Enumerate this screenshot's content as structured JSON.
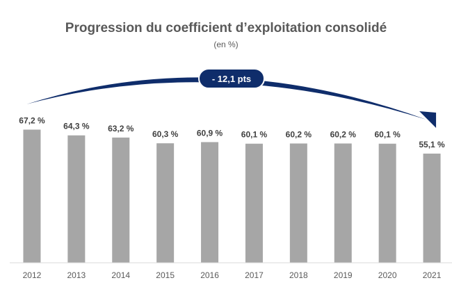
{
  "chart_data": {
    "type": "bar",
    "title": "Progression du coefficient d’exploitation consolidé",
    "subtitle": "(en %)",
    "categories": [
      "2012",
      "2013",
      "2014",
      "2015",
      "2016",
      "2017",
      "2018",
      "2019",
      "2020",
      "2021"
    ],
    "values": [
      67.2,
      64.3,
      63.2,
      60.3,
      60.9,
      60.1,
      60.2,
      60.2,
      60.1,
      55.1
    ],
    "data_labels": [
      "67,2 %",
      "64,3 %",
      "63,2 %",
      "60,3 %",
      "60,9 %",
      "60,1 %",
      "60,2 %",
      "60,2 %",
      "60,1 %",
      "55,1 %"
    ],
    "ylim": [
      0,
      100
    ],
    "grid": false,
    "annotation": {
      "text": "- 12,1 pts",
      "from": "2012",
      "to": "2021"
    },
    "colors": {
      "bar": "#a6a6a6",
      "arrow": "#0f2d6b",
      "text": "#595959",
      "label": "#404040"
    }
  }
}
